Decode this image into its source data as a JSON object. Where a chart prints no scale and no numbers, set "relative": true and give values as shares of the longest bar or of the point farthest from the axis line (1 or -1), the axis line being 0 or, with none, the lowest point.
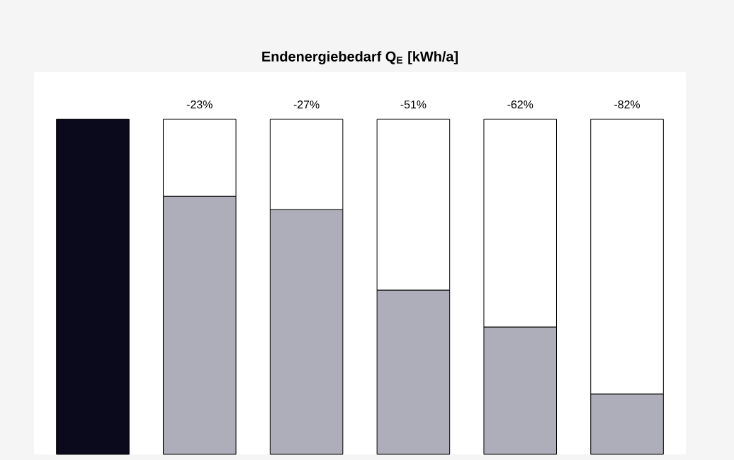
{
  "chart_data": {
    "type": "bar",
    "title": "Endenergiebedarf Q$_{E}$  [kWh/a]",
    "relative": true,
    "stacked": true,
    "categories": [
      null,
      null,
      null,
      null,
      null,
      null
    ],
    "series": [
      {
        "values": [
          1,
          0.77,
          0.73,
          0.49,
          0.38,
          0.18
        ],
        "colors": [
          "#0a0a1c",
          "#aeaeba",
          "#aeaeba",
          "#aeaeba",
          "#aeaeba",
          "#aeaeba"
        ]
      },
      {
        "values": [
          null,
          0.23,
          0.27,
          0.51,
          0.62,
          0.82
        ],
        "color": "#ffffff"
      }
    ],
    "annotations": [
      "-23%",
      "-27%",
      "-51%",
      "-62%",
      "-82%"
    ]
  }
}
